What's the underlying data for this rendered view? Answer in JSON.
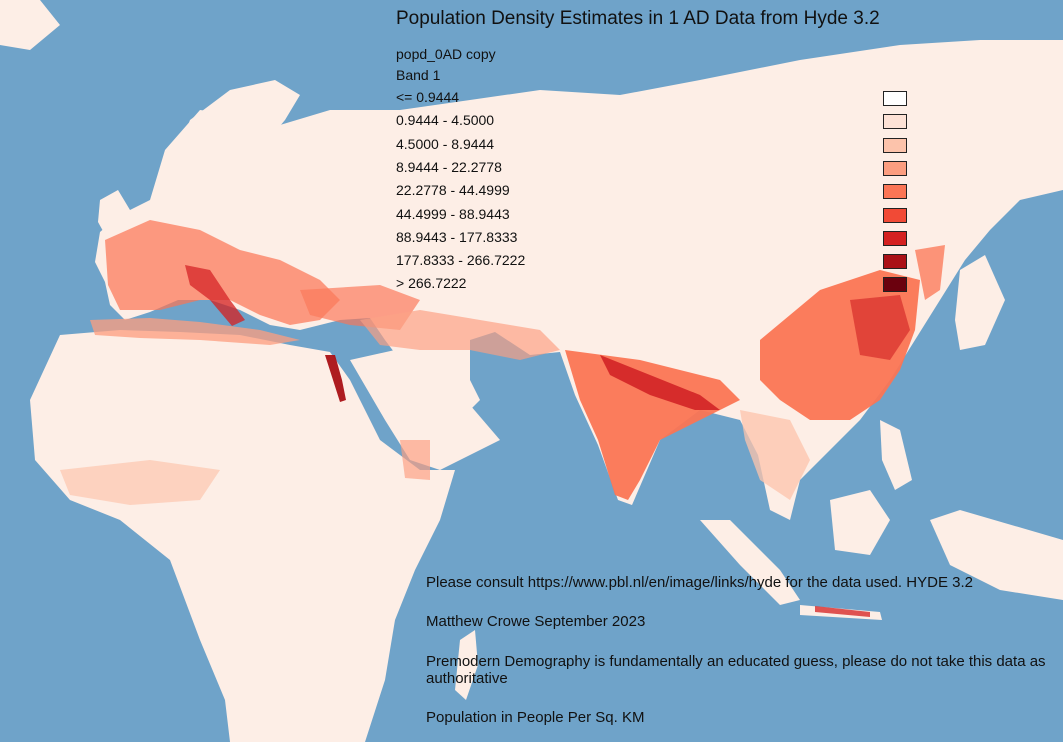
{
  "title": "Population Density Estimates in 1 AD Data from Hyde 3.2",
  "layer_name": "popd_0AD copy",
  "band": "Band 1",
  "legend": [
    {
      "label": "<= 0.9444",
      "color": "#ffffff"
    },
    {
      "label": "0.9444 - 4.5000",
      "color": "#fde2d6"
    },
    {
      "label": "4.5000 - 8.9444",
      "color": "#fcc3ab"
    },
    {
      "label": "8.9444 - 22.2778",
      "color": "#fc9e80"
    },
    {
      "label": "22.2778 - 44.4999",
      "color": "#fb7555"
    },
    {
      "label": "44.4999 - 88.9443",
      "color": "#f14a36"
    },
    {
      "label": "88.9443 - 177.8333",
      "color": "#d42121"
    },
    {
      "label": "177.8333 - 266.7222",
      "color": "#aa1016"
    },
    {
      "label": "> 266.7222",
      "color": "#6b010e"
    }
  ],
  "notes": {
    "source": "Please consult https://www.pbl.nl/en/image/links/hyde for the data used. HYDE 3.2",
    "author": "Matthew Crowe September 2023",
    "disclaimer": "Premodern Demography is fundamentally an educated guess, please do not take this data as authoritative",
    "units": "Population in People Per Sq. KM"
  },
  "colors": {
    "ocean": "#6fa3c9",
    "land": "#fdeee6"
  }
}
